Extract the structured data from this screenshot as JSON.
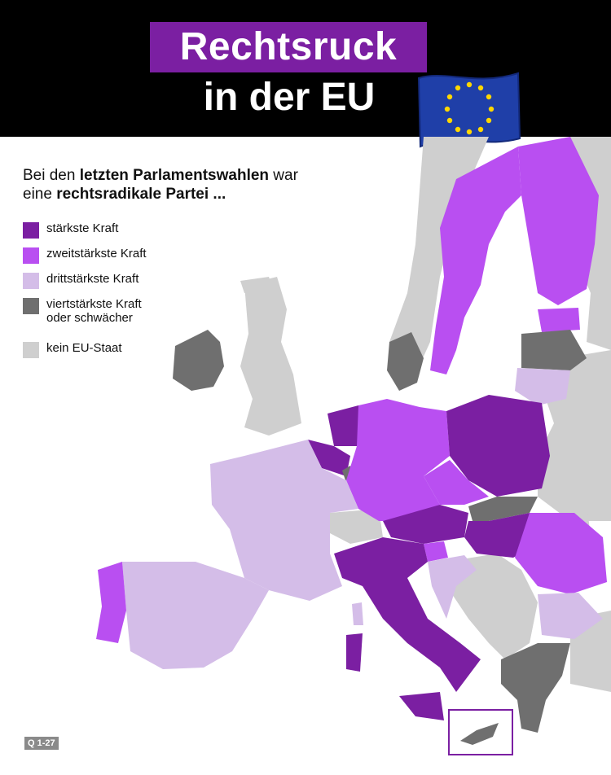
{
  "header": {
    "title_line1": "Rechtsruck",
    "title_line2": "in der EU",
    "flag_icon": "eu-flag-icon"
  },
  "intro": {
    "part1": "Bei den ",
    "bold1": "letzten Parlamentswahlen",
    "part2": " war",
    "part3": "eine ",
    "bold2": "rechtsradikale Partei ..."
  },
  "legend": [
    {
      "label": "stärkste Kraft",
      "color": "#7b1fa2"
    },
    {
      "label": "zweitstärkste Kraft",
      "color": "#b94ff1"
    },
    {
      "label": "drittstärkste Kraft",
      "color": "#d4bde8"
    },
    {
      "label": "viertstärkste Kraft\noder schwächer",
      "color": "#6f6f6f"
    },
    {
      "label": "kein EU-Staat",
      "color": "#cfcfcf"
    }
  ],
  "colors": {
    "first": "#7b1fa2",
    "second": "#b94ff1",
    "third": "#d4bde8",
    "fourth": "#6f6f6f",
    "non_eu": "#cfcfcf",
    "title_bg": "#7b1fa2",
    "header_bg": "#000000"
  },
  "footer": {
    "code": "Q 1-27"
  }
}
